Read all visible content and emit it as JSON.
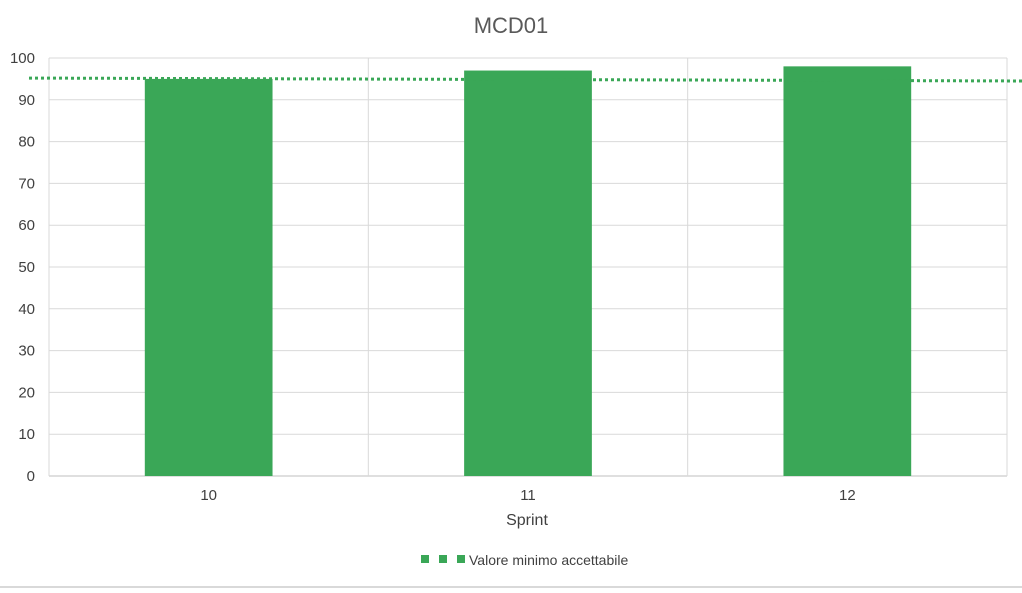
{
  "chart_data": {
    "type": "bar",
    "title": "MCD01",
    "xlabel": "Sprint",
    "ylabel": "",
    "categories": [
      "10",
      "11",
      "12"
    ],
    "series": [
      {
        "values": [
          95,
          97,
          98
        ],
        "color": "#3aa757"
      }
    ],
    "threshold": {
      "name": "Valore minimo accettabile",
      "start": 95.2,
      "end": 94.5,
      "color": "#3aa757",
      "style": "dotted"
    },
    "ylim": [
      0,
      100
    ],
    "yticks": [
      0,
      10,
      20,
      30,
      40,
      50,
      60,
      70,
      80,
      90,
      100
    ],
    "grid": true,
    "legend_position": "bottom"
  }
}
